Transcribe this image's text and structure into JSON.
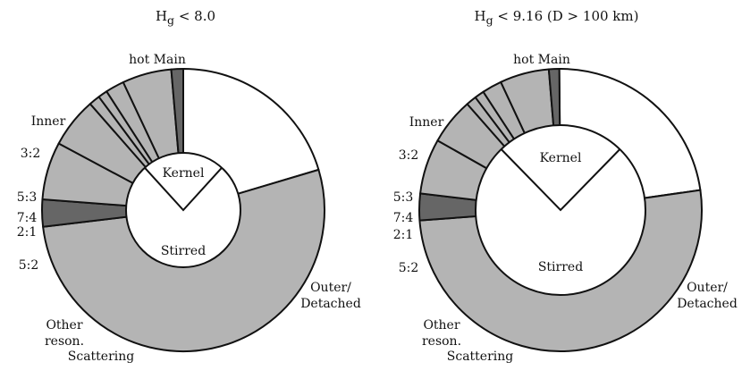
{
  "colors": {
    "background": "#ffffff",
    "outline": "#111111",
    "light_gray": "#b4b4b4",
    "dark_gray": "#666666",
    "white": "#ffffff"
  },
  "chart_data": [
    {
      "type": "pie",
      "subtype": "nested-donut",
      "title": "H",
      "title_sub": "g",
      "title_rest": " < 8.0",
      "outer_ring": [
        {
          "label": "hot Main",
          "value": 21.0,
          "color": "#ffffff"
        },
        {
          "label": "Outer/\nDetached",
          "value": 54.3,
          "color": "#b4b4b4"
        },
        {
          "label": "Scattering",
          "value": 3.2,
          "color": "#666666"
        },
        {
          "label": "Other\nreson.",
          "value": 6.8,
          "color": "#b4b4b4"
        },
        {
          "label": "5:2",
          "value": 5.9,
          "color": "#b4b4b4"
        },
        {
          "label": "2:1",
          "value": 1.3,
          "color": "#b4b4b4"
        },
        {
          "label": "7:4",
          "value": 1.1,
          "color": "#b4b4b4"
        },
        {
          "label": "5:3",
          "value": 2.2,
          "color": "#b4b4b4"
        },
        {
          "label": "3:2",
          "value": 5.8,
          "color": "#b4b4b4"
        },
        {
          "label": "Inner",
          "value": 1.4,
          "color": "#666666"
        }
      ],
      "inner_pie": [
        {
          "label": "Kernel",
          "value": 23.5
        },
        {
          "label": "Stirred",
          "value": 76.5
        }
      ]
    },
    {
      "type": "pie",
      "subtype": "nested-donut",
      "title": "H",
      "title_sub": "g",
      "title_rest": " < 9.16 (D > 100 km)",
      "outer_ring": [
        {
          "label": "hot Main",
          "value": 23.2,
          "color": "#ffffff"
        },
        {
          "label": "Outer/\nDetached",
          "value": 51.8,
          "color": "#b4b4b4"
        },
        {
          "label": "Scattering",
          "value": 3.1,
          "color": "#666666"
        },
        {
          "label": "Other\nreson.",
          "value": 6.4,
          "color": "#b4b4b4"
        },
        {
          "label": "5:2",
          "value": 5.4,
          "color": "#b4b4b4"
        },
        {
          "label": "2:1",
          "value": 1.2,
          "color": "#b4b4b4"
        },
        {
          "label": "7:4",
          "value": 1.1,
          "color": "#b4b4b4"
        },
        {
          "label": "5:3",
          "value": 2.3,
          "color": "#b4b4b4"
        },
        {
          "label": "3:2",
          "value": 5.7,
          "color": "#b4b4b4"
        },
        {
          "label": "Inner",
          "value": 1.2,
          "color": "#666666"
        }
      ],
      "inner_pie": [
        {
          "label": "Kernel",
          "value": 24.6
        },
        {
          "label": "Stirred",
          "value": 75.4
        }
      ]
    }
  ]
}
